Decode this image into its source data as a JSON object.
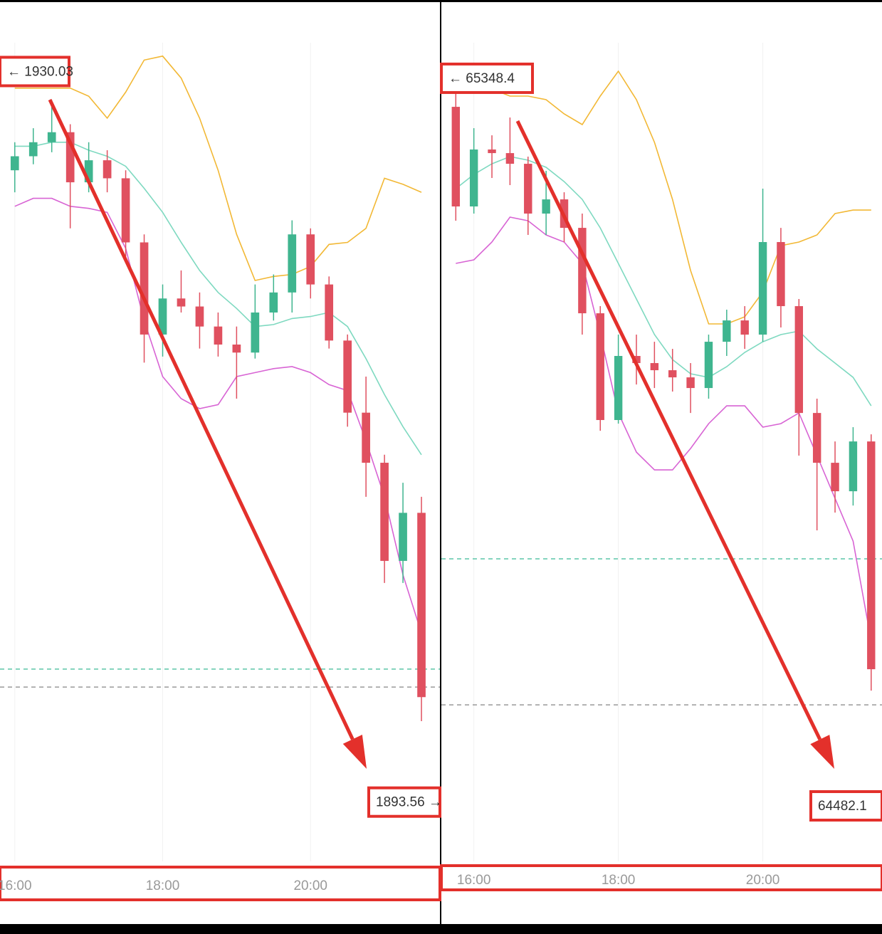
{
  "chart_data": [
    {
      "type": "candlestick",
      "x": [
        16,
        16.25,
        16.5,
        16.75,
        17,
        17.25,
        17.5,
        17.75,
        18,
        18.25,
        18.5,
        18.75,
        19,
        19.25,
        19.5,
        19.75,
        20,
        20.25,
        20.5,
        20.75,
        21,
        21.25,
        21.5
      ],
      "open": [
        1925.1,
        1925.8,
        1926.5,
        1927.0,
        1924.5,
        1925.6,
        1924.7,
        1921.5,
        1916.9,
        1918.7,
        1918.3,
        1917.3,
        1916.4,
        1916.0,
        1918.0,
        1919.0,
        1921.9,
        1919.4,
        1916.6,
        1913.0,
        1910.5,
        1905.6,
        1908.0
      ],
      "high": [
        1926.5,
        1927.2,
        1928.6,
        1927.4,
        1926.5,
        1926.1,
        1925.1,
        1921.9,
        1919.4,
        1920.1,
        1919.0,
        1918.0,
        1917.3,
        1919.4,
        1919.9,
        1922.6,
        1922.2,
        1919.8,
        1916.9,
        1914.8,
        1910.9,
        1909.5,
        1908.8
      ],
      "low": [
        1924.0,
        1925.4,
        1926.0,
        1922.2,
        1924.0,
        1924.0,
        1920.8,
        1915.5,
        1915.8,
        1918.0,
        1916.2,
        1915.8,
        1913.7,
        1915.7,
        1917.6,
        1918.0,
        1918.7,
        1916.2,
        1912.3,
        1908.8,
        1904.5,
        1904.5,
        1897.6
      ],
      "close": [
        1925.8,
        1926.5,
        1927.0,
        1924.5,
        1925.6,
        1924.7,
        1921.5,
        1916.9,
        1918.7,
        1918.3,
        1917.3,
        1916.4,
        1916.0,
        1918.0,
        1919.0,
        1921.9,
        1919.4,
        1916.6,
        1913.0,
        1910.5,
        1905.6,
        1908.0,
        1898.8
      ],
      "up_color": "#3fb58f",
      "down_color": "#e0505f",
      "bands": [
        {
          "color": "#f2b835",
          "values": [
            1929.2,
            1929.2,
            1929.2,
            1929.2,
            1928.8,
            1927.7,
            1929.0,
            1930.6,
            1930.8,
            1929.7,
            1927.7,
            1925.1,
            1921.9,
            1919.6,
            1919.8,
            1919.9,
            1920.3,
            1921.4,
            1921.5,
            1922.2,
            1924.7,
            1924.4,
            1924.0
          ]
        },
        {
          "color": "#7ed9c0",
          "values": [
            1926.3,
            1926.3,
            1926.5,
            1926.5,
            1926.1,
            1925.8,
            1925.3,
            1924.2,
            1923.0,
            1921.5,
            1920.1,
            1919.0,
            1918.2,
            1917.3,
            1917.4,
            1917.7,
            1917.8,
            1918.0,
            1917.3,
            1915.7,
            1913.9,
            1912.3,
            1910.9
          ]
        },
        {
          "color": "#d864d4",
          "values": [
            1923.3,
            1923.7,
            1923.7,
            1923.3,
            1923.2,
            1923.0,
            1921.2,
            1917.6,
            1914.8,
            1913.7,
            1913.2,
            1913.4,
            1914.8,
            1915.0,
            1915.2,
            1915.3,
            1915.0,
            1914.4,
            1914.1,
            1911.6,
            1908.8,
            1904.9,
            1902.0
          ]
        }
      ],
      "levels": [
        {
          "value": 1900.2,
          "color": "#5cc5a8"
        },
        {
          "value": 1899.3,
          "color": "#9a9a9a"
        }
      ],
      "price_labels": [
        {
          "value": 1930.03,
          "label": "← 1930.03"
        },
        {
          "value": 1893.56,
          "label": "1893.56 →"
        }
      ],
      "xlim": [
        15.8,
        21.75
      ],
      "ylim": [
        1890.6,
        1933.6
      ],
      "xticks": [
        {
          "value": 16,
          "label": "16:00"
        },
        {
          "value": 18,
          "label": "18:00"
        },
        {
          "value": 20,
          "label": "20:00"
        }
      ]
    },
    {
      "type": "candlestick",
      "x": [
        15.75,
        16,
        16.25,
        16.5,
        16.75,
        17,
        17.25,
        17.5,
        17.75,
        18,
        18.25,
        18.5,
        18.75,
        19,
        19.25,
        19.5,
        19.75,
        20,
        20.25,
        20.5,
        20.75,
        21,
        21.25,
        21.5
      ],
      "open": [
        65314.4,
        65195.8,
        65263.6,
        65259.3,
        65246.6,
        65187.3,
        65204.2,
        65170.3,
        65068.6,
        64941.5,
        65017.8,
        65009.3,
        65000.8,
        64992.3,
        64979.6,
        65034.7,
        65060.1,
        65043.2,
        65153.4,
        65077.1,
        64949.9,
        64890.6,
        64856.7,
        64916.0
      ],
      "high": [
        65339.9,
        65289.0,
        65280.5,
        65301.7,
        65255.1,
        65238.2,
        65212.7,
        65187.3,
        65077.1,
        65043.2,
        65043.2,
        65034.7,
        65026.2,
        65009.3,
        65043.2,
        65072.9,
        65077.1,
        65217.0,
        65170.3,
        65085.6,
        64966.9,
        64916.0,
        64933.0,
        64924.5
      ],
      "low": [
        65178.8,
        65187.3,
        65229.7,
        65221.2,
        65161.9,
        65161.9,
        65153.4,
        65043.2,
        64928.7,
        64937.2,
        64983.8,
        64979.6,
        64975.4,
        64949.9,
        64966.9,
        65017.8,
        65026.2,
        65034.7,
        65051.7,
        64899.1,
        64810.1,
        64831.3,
        64839.7,
        64619.3
      ],
      "close": [
        65195.8,
        65263.6,
        65259.3,
        65246.6,
        65187.3,
        65204.2,
        65170.3,
        65068.6,
        64941.5,
        65017.8,
        65009.3,
        65000.8,
        64992.3,
        64979.6,
        65034.7,
        65060.1,
        65043.2,
        65153.4,
        65077.1,
        64949.9,
        64890.6,
        64856.7,
        64916.0,
        64644.8
      ],
      "up_color": "#3fb58f",
      "down_color": "#e0505f",
      "bands": [
        {
          "color": "#f2b835",
          "values": [
            65335.6,
            65335.6,
            65335.6,
            65327.2,
            65327.2,
            65322.9,
            65306.0,
            65293.3,
            65327.2,
            65356.8,
            65322.9,
            65272.1,
            65204.2,
            65119.5,
            65055.9,
            65055.9,
            65064.4,
            65094.0,
            65149.1,
            65153.4,
            65161.9,
            65187.3,
            65191.5,
            65191.5
          ]
        },
        {
          "color": "#7ed9c0",
          "values": [
            65217.0,
            65233.9,
            65246.6,
            65255.1,
            65250.9,
            65242.4,
            65225.4,
            65204.2,
            65170.3,
            65128.0,
            65085.6,
            65043.2,
            65013.5,
            64996.6,
            64992.3,
            65005.0,
            65022.0,
            65034.7,
            65043.2,
            65047.4,
            65026.2,
            65009.3,
            64992.3,
            64958.4
          ]
        },
        {
          "color": "#d864d4",
          "values": [
            65128.0,
            65132.2,
            65153.4,
            65183.1,
            65178.8,
            65161.9,
            65153.4,
            65128.0,
            65043.2,
            64949.9,
            64903.3,
            64882.1,
            64882.1,
            64907.6,
            64937.2,
            64958.4,
            64958.4,
            64933.0,
            64937.2,
            64949.9,
            64899.1,
            64848.2,
            64797.3,
            64678.7
          ]
        }
      ],
      "levels": [
        {
          "value": 64776.2,
          "color": "#5cc5a8"
        },
        {
          "value": 64602.4,
          "color": "#9a9a9a"
        }
      ],
      "price_labels": [
        {
          "value": 65348.4,
          "label": "← 65348.4"
        },
        {
          "value": 64482.1,
          "label": "64482.1"
        }
      ],
      "xlim": [
        15.55,
        21.65
      ],
      "ylim": [
        64416,
        65441.6
      ],
      "xticks": [
        {
          "value": 16,
          "label": "16:00"
        },
        {
          "value": 18,
          "label": "18:00"
        },
        {
          "value": 20,
          "label": "20:00"
        }
      ]
    }
  ]
}
